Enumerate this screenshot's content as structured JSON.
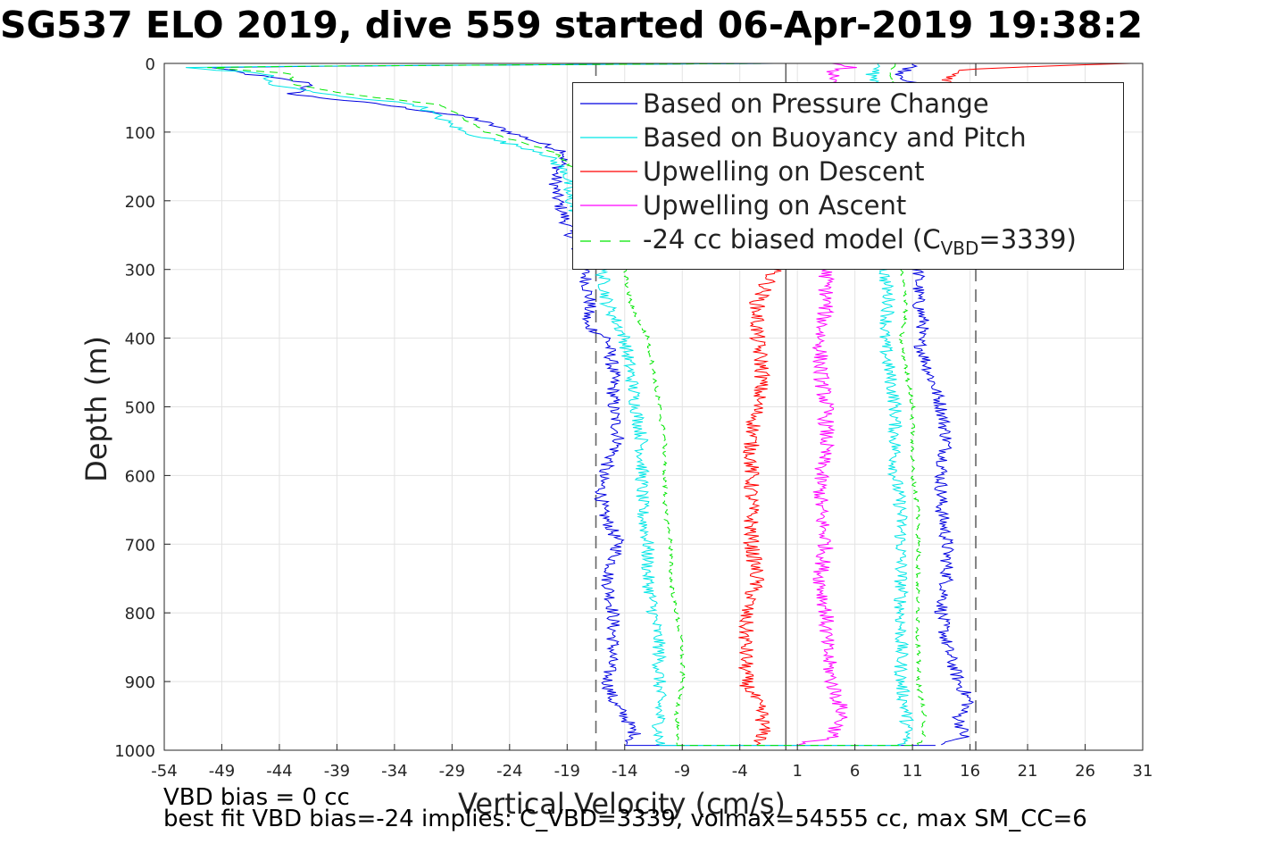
{
  "title": "SG537 ELO 2019, dive 559 started 06-Apr-2019 19:38:2",
  "footer": {
    "line1": "VBD bias = 0 cc",
    "line2": "best fit VBD bias=-24 implies: C_VBD=3339, volmax=54555 cc, max SM_CC=6"
  },
  "chart_data": {
    "type": "line",
    "xlabel": "Vertical Velocity (cm/s)",
    "ylabel": "Depth (m)",
    "xlim": [
      -54,
      31
    ],
    "ylim": [
      1000,
      0
    ],
    "y_reversed": true,
    "grid": true,
    "xticks": [
      "-54",
      "-49",
      "-44",
      "-39",
      "-34",
      "-29",
      "-24",
      "-19",
      "-14",
      "-9",
      "-4",
      "1",
      "6",
      "11",
      "16",
      "21",
      "26",
      "31"
    ],
    "yticks": [
      "0",
      "100",
      "200",
      "300",
      "400",
      "500",
      "600",
      "700",
      "800",
      "900",
      "1000"
    ],
    "legend_position": "top-right",
    "legend": {
      "series0": "Based on Pressure Change",
      "series1": "Based on Buoyancy and Pitch",
      "series2": "Upwelling on Descent",
      "series3": "Upwelling on Ascent",
      "series4_pre": "-24 cc biased model (C",
      "series4_sub": "VBD",
      "series4_post": "=3339)"
    },
    "reference_lines": {
      "zero": 0,
      "dashed": [
        -16.5,
        16.5
      ]
    },
    "series": [
      {
        "name": "Based on Pressure Change",
        "color": "#0000e0",
        "style": "solid",
        "depth": [
          0,
          5,
          15,
          30,
          45,
          60,
          80,
          100,
          130,
          160,
          190,
          300,
          350,
          380,
          400,
          450,
          500,
          550,
          600,
          650,
          700,
          750,
          800,
          850,
          900,
          930,
          950,
          980,
          993
        ],
        "descent": [
          -1,
          -50,
          -47,
          -41,
          -43,
          -35,
          -27,
          -24,
          -19,
          -20,
          -20,
          -17.5,
          -17,
          -17.5,
          -15.5,
          -15,
          -15,
          -14.5,
          -16,
          -16,
          -14.5,
          -15.5,
          -15,
          -15,
          -15.5,
          -15,
          -14,
          -13,
          -14
        ],
        "ascent": [
          11,
          11,
          10,
          11,
          12,
          12,
          12,
          12,
          12,
          12,
          12,
          11.5,
          11.5,
          12,
          11.5,
          12.5,
          13.5,
          14,
          13.5,
          13.5,
          14,
          14,
          13.5,
          14,
          15,
          16,
          15,
          15.5,
          13
        ]
      },
      {
        "name": "Based on Buoyancy and Pitch",
        "color": "#00e6e6",
        "style": "solid",
        "depth": [
          0,
          5,
          15,
          30,
          45,
          60,
          80,
          100,
          130,
          160,
          190,
          300,
          350,
          400,
          450,
          500,
          550,
          600,
          650,
          700,
          750,
          800,
          850,
          900,
          950,
          980,
          993
        ],
        "descent": [
          -1,
          -53,
          -45,
          -45,
          -40,
          -32,
          -30,
          -28,
          -21,
          -19,
          -19,
          -16,
          -15.5,
          -14,
          -13.5,
          -13,
          -12.5,
          -12.5,
          -12.5,
          -12,
          -12,
          -11.5,
          -11,
          -11,
          -11,
          -11,
          -11
        ],
        "ascent": [
          8,
          8,
          7.5,
          8,
          8.5,
          8.5,
          8.5,
          8.5,
          8.5,
          8.5,
          8.5,
          8.5,
          9,
          8.5,
          9,
          9.5,
          9.5,
          9.5,
          10,
          10,
          10,
          10,
          10,
          10,
          10.5,
          10.5,
          10
        ]
      },
      {
        "name": "Upwelling on Descent",
        "color": "#ff0000",
        "style": "solid",
        "depth": [
          0,
          5,
          10,
          300,
          350,
          400,
          450,
          500,
          550,
          600,
          650,
          700,
          750,
          800,
          850,
          900,
          950,
          980,
          993
        ],
        "values": [
          30,
          20,
          15,
          -1,
          -2.5,
          -2.5,
          -2,
          -2.5,
          -3,
          -3,
          -3,
          -3,
          -2.5,
          -3.5,
          -3.5,
          -3.5,
          -2,
          -2,
          -2.5
        ]
      },
      {
        "name": "Upwelling on Ascent",
        "color": "#ff00ff",
        "style": "solid",
        "depth": [
          0,
          5,
          10,
          300,
          350,
          400,
          450,
          500,
          550,
          600,
          650,
          700,
          750,
          800,
          850,
          900,
          950,
          980,
          993
        ],
        "values": [
          4,
          6,
          4,
          3.5,
          3.5,
          3,
          3,
          3.5,
          3.5,
          3,
          3,
          3.5,
          3,
          3.5,
          3.5,
          4,
          5,
          4,
          1
        ]
      },
      {
        "name": "-24 cc biased model",
        "color": "#00e600",
        "style": "dashed",
        "depth": [
          0,
          5,
          15,
          30,
          45,
          60,
          80,
          100,
          130,
          160,
          190,
          300,
          350,
          400,
          450,
          500,
          550,
          600,
          650,
          700,
          750,
          800,
          850,
          900,
          950,
          980,
          993
        ],
        "descent": [
          -1,
          -51,
          -43,
          -43,
          -38,
          -30,
          -28,
          -26,
          -20,
          -18,
          -18,
          -14,
          -13.5,
          -12,
          -11.5,
          -11,
          -10.5,
          -10.5,
          -10.5,
          -10,
          -10,
          -9.5,
          -9,
          -9,
          -9.5,
          -9.5,
          -9.5
        ],
        "ascent": [
          9.5,
          9.5,
          9,
          9.5,
          10,
          10,
          10,
          10,
          10,
          10,
          10,
          10,
          10.5,
          10,
          10.5,
          11,
          11,
          11,
          11.5,
          11.5,
          11.5,
          11.5,
          11.5,
          11.5,
          12,
          12,
          11.5
        ]
      }
    ]
  }
}
